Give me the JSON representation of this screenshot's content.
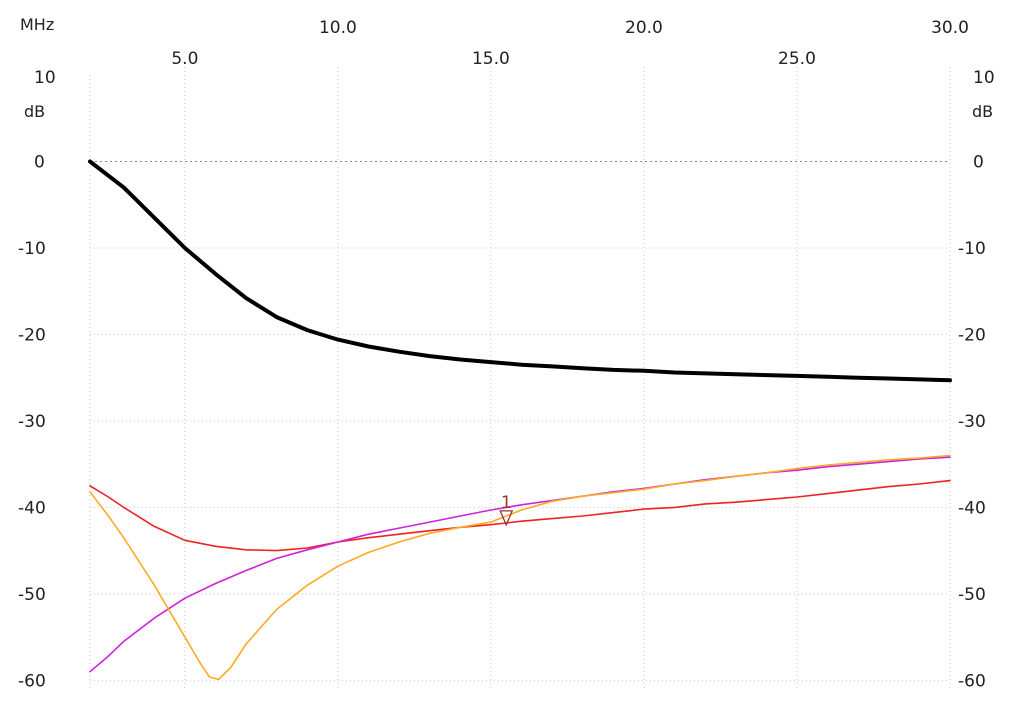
{
  "chart_data": {
    "type": "line",
    "x_unit": "MHz",
    "y_unit": "dB",
    "xlim": [
      1.9,
      30.0
    ],
    "ylim": [
      -61,
      10
    ],
    "x_ticks_top_row": [
      "10.0",
      "20.0",
      "30.0"
    ],
    "x_ticks_bottom_row": [
      "5.0",
      "15.0",
      "25.0"
    ],
    "y_ticks": [
      "10",
      "0",
      "-10",
      "-20",
      "-30",
      "-40",
      "-50",
      "-60"
    ],
    "grid": true,
    "series": [
      {
        "color": "#000000",
        "points": [
          [
            1.9,
            0
          ],
          [
            3,
            -3
          ],
          [
            4,
            -6.5
          ],
          [
            5,
            -10
          ],
          [
            6,
            -13
          ],
          [
            7,
            -15.8
          ],
          [
            8,
            -18
          ],
          [
            9,
            -19.5
          ],
          [
            10,
            -20.6
          ],
          [
            11,
            -21.4
          ],
          [
            12,
            -22
          ],
          [
            13,
            -22.5
          ],
          [
            14,
            -22.9
          ],
          [
            15,
            -23.2
          ],
          [
            16,
            -23.5
          ],
          [
            17,
            -23.7
          ],
          [
            18,
            -23.9
          ],
          [
            19,
            -24.1
          ],
          [
            20,
            -24.2
          ],
          [
            21,
            -24.4
          ],
          [
            22,
            -24.5
          ],
          [
            23,
            -24.6
          ],
          [
            24,
            -24.7
          ],
          [
            25,
            -24.8
          ],
          [
            26,
            -24.9
          ],
          [
            27,
            -25
          ],
          [
            28,
            -25.1
          ],
          [
            29,
            -25.2
          ],
          [
            30,
            -25.3
          ]
        ]
      },
      {
        "color": "#ee2222",
        "points": [
          [
            1.9,
            -37.5
          ],
          [
            2.5,
            -38.8
          ],
          [
            3,
            -40
          ],
          [
            4,
            -42.2
          ],
          [
            5,
            -43.8
          ],
          [
            6,
            -44.5
          ],
          [
            7,
            -44.9
          ],
          [
            8,
            -45
          ],
          [
            9,
            -44.7
          ],
          [
            10,
            -44
          ],
          [
            11,
            -43.5
          ],
          [
            12,
            -43.1
          ],
          [
            13,
            -42.7
          ],
          [
            14,
            -42.3
          ],
          [
            15,
            -42
          ],
          [
            16,
            -41.6
          ],
          [
            17,
            -41.3
          ],
          [
            18,
            -41
          ],
          [
            19,
            -40.6
          ],
          [
            20,
            -40.2
          ],
          [
            21,
            -40
          ],
          [
            22,
            -39.6
          ],
          [
            23,
            -39.4
          ],
          [
            24,
            -39.1
          ],
          [
            25,
            -38.8
          ],
          [
            26,
            -38.4
          ],
          [
            27,
            -38
          ],
          [
            28,
            -37.6
          ],
          [
            29,
            -37.3
          ],
          [
            30,
            -36.9
          ]
        ]
      },
      {
        "color": "#cc22dd",
        "points": [
          [
            1.9,
            -59
          ],
          [
            2.5,
            -57.2
          ],
          [
            3,
            -55.5
          ],
          [
            4,
            -52.8
          ],
          [
            5,
            -50.5
          ],
          [
            6,
            -48.8
          ],
          [
            7,
            -47.3
          ],
          [
            8,
            -45.9
          ],
          [
            9,
            -44.9
          ],
          [
            10,
            -44
          ],
          [
            11,
            -43.1
          ],
          [
            12,
            -42.4
          ],
          [
            13,
            -41.7
          ],
          [
            14,
            -41
          ],
          [
            15,
            -40.3
          ],
          [
            16,
            -39.7
          ],
          [
            17,
            -39.2
          ],
          [
            18,
            -38.7
          ],
          [
            19,
            -38.2
          ],
          [
            20,
            -37.8
          ],
          [
            21,
            -37.3
          ],
          [
            22,
            -36.8
          ],
          [
            23,
            -36.4
          ],
          [
            24,
            -36
          ],
          [
            25,
            -35.7
          ],
          [
            26,
            -35.3
          ],
          [
            27,
            -35
          ],
          [
            28,
            -34.7
          ],
          [
            29,
            -34.4
          ],
          [
            30,
            -34.2
          ]
        ]
      },
      {
        "color": "#ffaa22",
        "points": [
          [
            1.9,
            -38.2
          ],
          [
            2.5,
            -41
          ],
          [
            3,
            -43.5
          ],
          [
            4,
            -49
          ],
          [
            5,
            -55
          ],
          [
            5.5,
            -58
          ],
          [
            5.8,
            -59.6
          ],
          [
            6.1,
            -59.9
          ],
          [
            6.5,
            -58.5
          ],
          [
            7,
            -55.8
          ],
          [
            8,
            -51.8
          ],
          [
            9,
            -49
          ],
          [
            10,
            -46.8
          ],
          [
            11,
            -45.2
          ],
          [
            12,
            -44
          ],
          [
            13,
            -43
          ],
          [
            14,
            -42.3
          ],
          [
            15,
            -41.7
          ],
          [
            16,
            -40.3
          ],
          [
            17,
            -39.3
          ],
          [
            18,
            -38.7
          ],
          [
            19,
            -38.3
          ],
          [
            20,
            -37.9
          ],
          [
            21,
            -37.3
          ],
          [
            22,
            -36.9
          ],
          [
            23,
            -36.4
          ],
          [
            24,
            -36
          ],
          [
            25,
            -35.5
          ],
          [
            26,
            -35.1
          ],
          [
            27,
            -34.8
          ],
          [
            28,
            -34.5
          ],
          [
            29,
            -34.3
          ],
          [
            30,
            -34
          ]
        ]
      }
    ],
    "marker": {
      "label": "1",
      "x": 15.5,
      "y": -40.4,
      "color": "#993333"
    }
  }
}
